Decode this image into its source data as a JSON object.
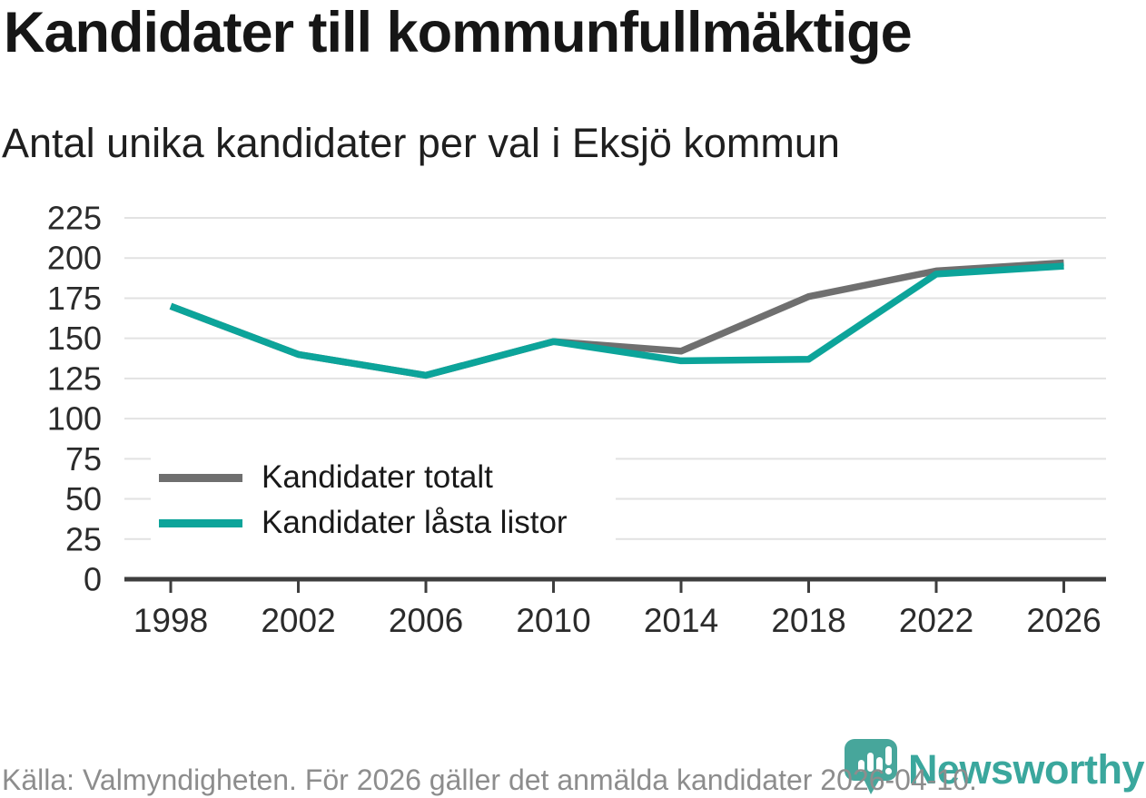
{
  "title": "Kandidater till kommunfullmäktige",
  "subtitle": "Antal unika kandidater per val i Eksjö kommun",
  "chart_data": {
    "type": "line",
    "categories": [
      "1998",
      "2002",
      "2006",
      "2010",
      "2014",
      "2018",
      "2022",
      "2026"
    ],
    "series": [
      {
        "name": "Kandidater totalt",
        "color": "#6f6f6f",
        "values": [
          170,
          140,
          127,
          148,
          142,
          176,
          192,
          197
        ]
      },
      {
        "name": "Kandidater låsta listor",
        "color": "#0ca49a",
        "values": [
          170,
          140,
          127,
          148,
          136,
          137,
          190,
          195
        ]
      }
    ],
    "xlabel": "",
    "ylabel": "",
    "ylim": [
      0,
      225
    ],
    "yticks": [
      0,
      25,
      50,
      75,
      100,
      125,
      150,
      175,
      200,
      225
    ],
    "grid": "horizontal",
    "legend_position": "inside-bottom-left",
    "colors": {
      "grid": "#e2e2e2",
      "axis": "#3e3e3e",
      "tick_label": "#2b2b2b"
    }
  },
  "footer": {
    "source_text": "Källa: Valmyndigheten. För 2026 gäller det anmälda kandidater 2026-04-10.",
    "brand": "Newsworthy",
    "brand_color": "#3aa79d",
    "logo_color": "#47a69b"
  }
}
